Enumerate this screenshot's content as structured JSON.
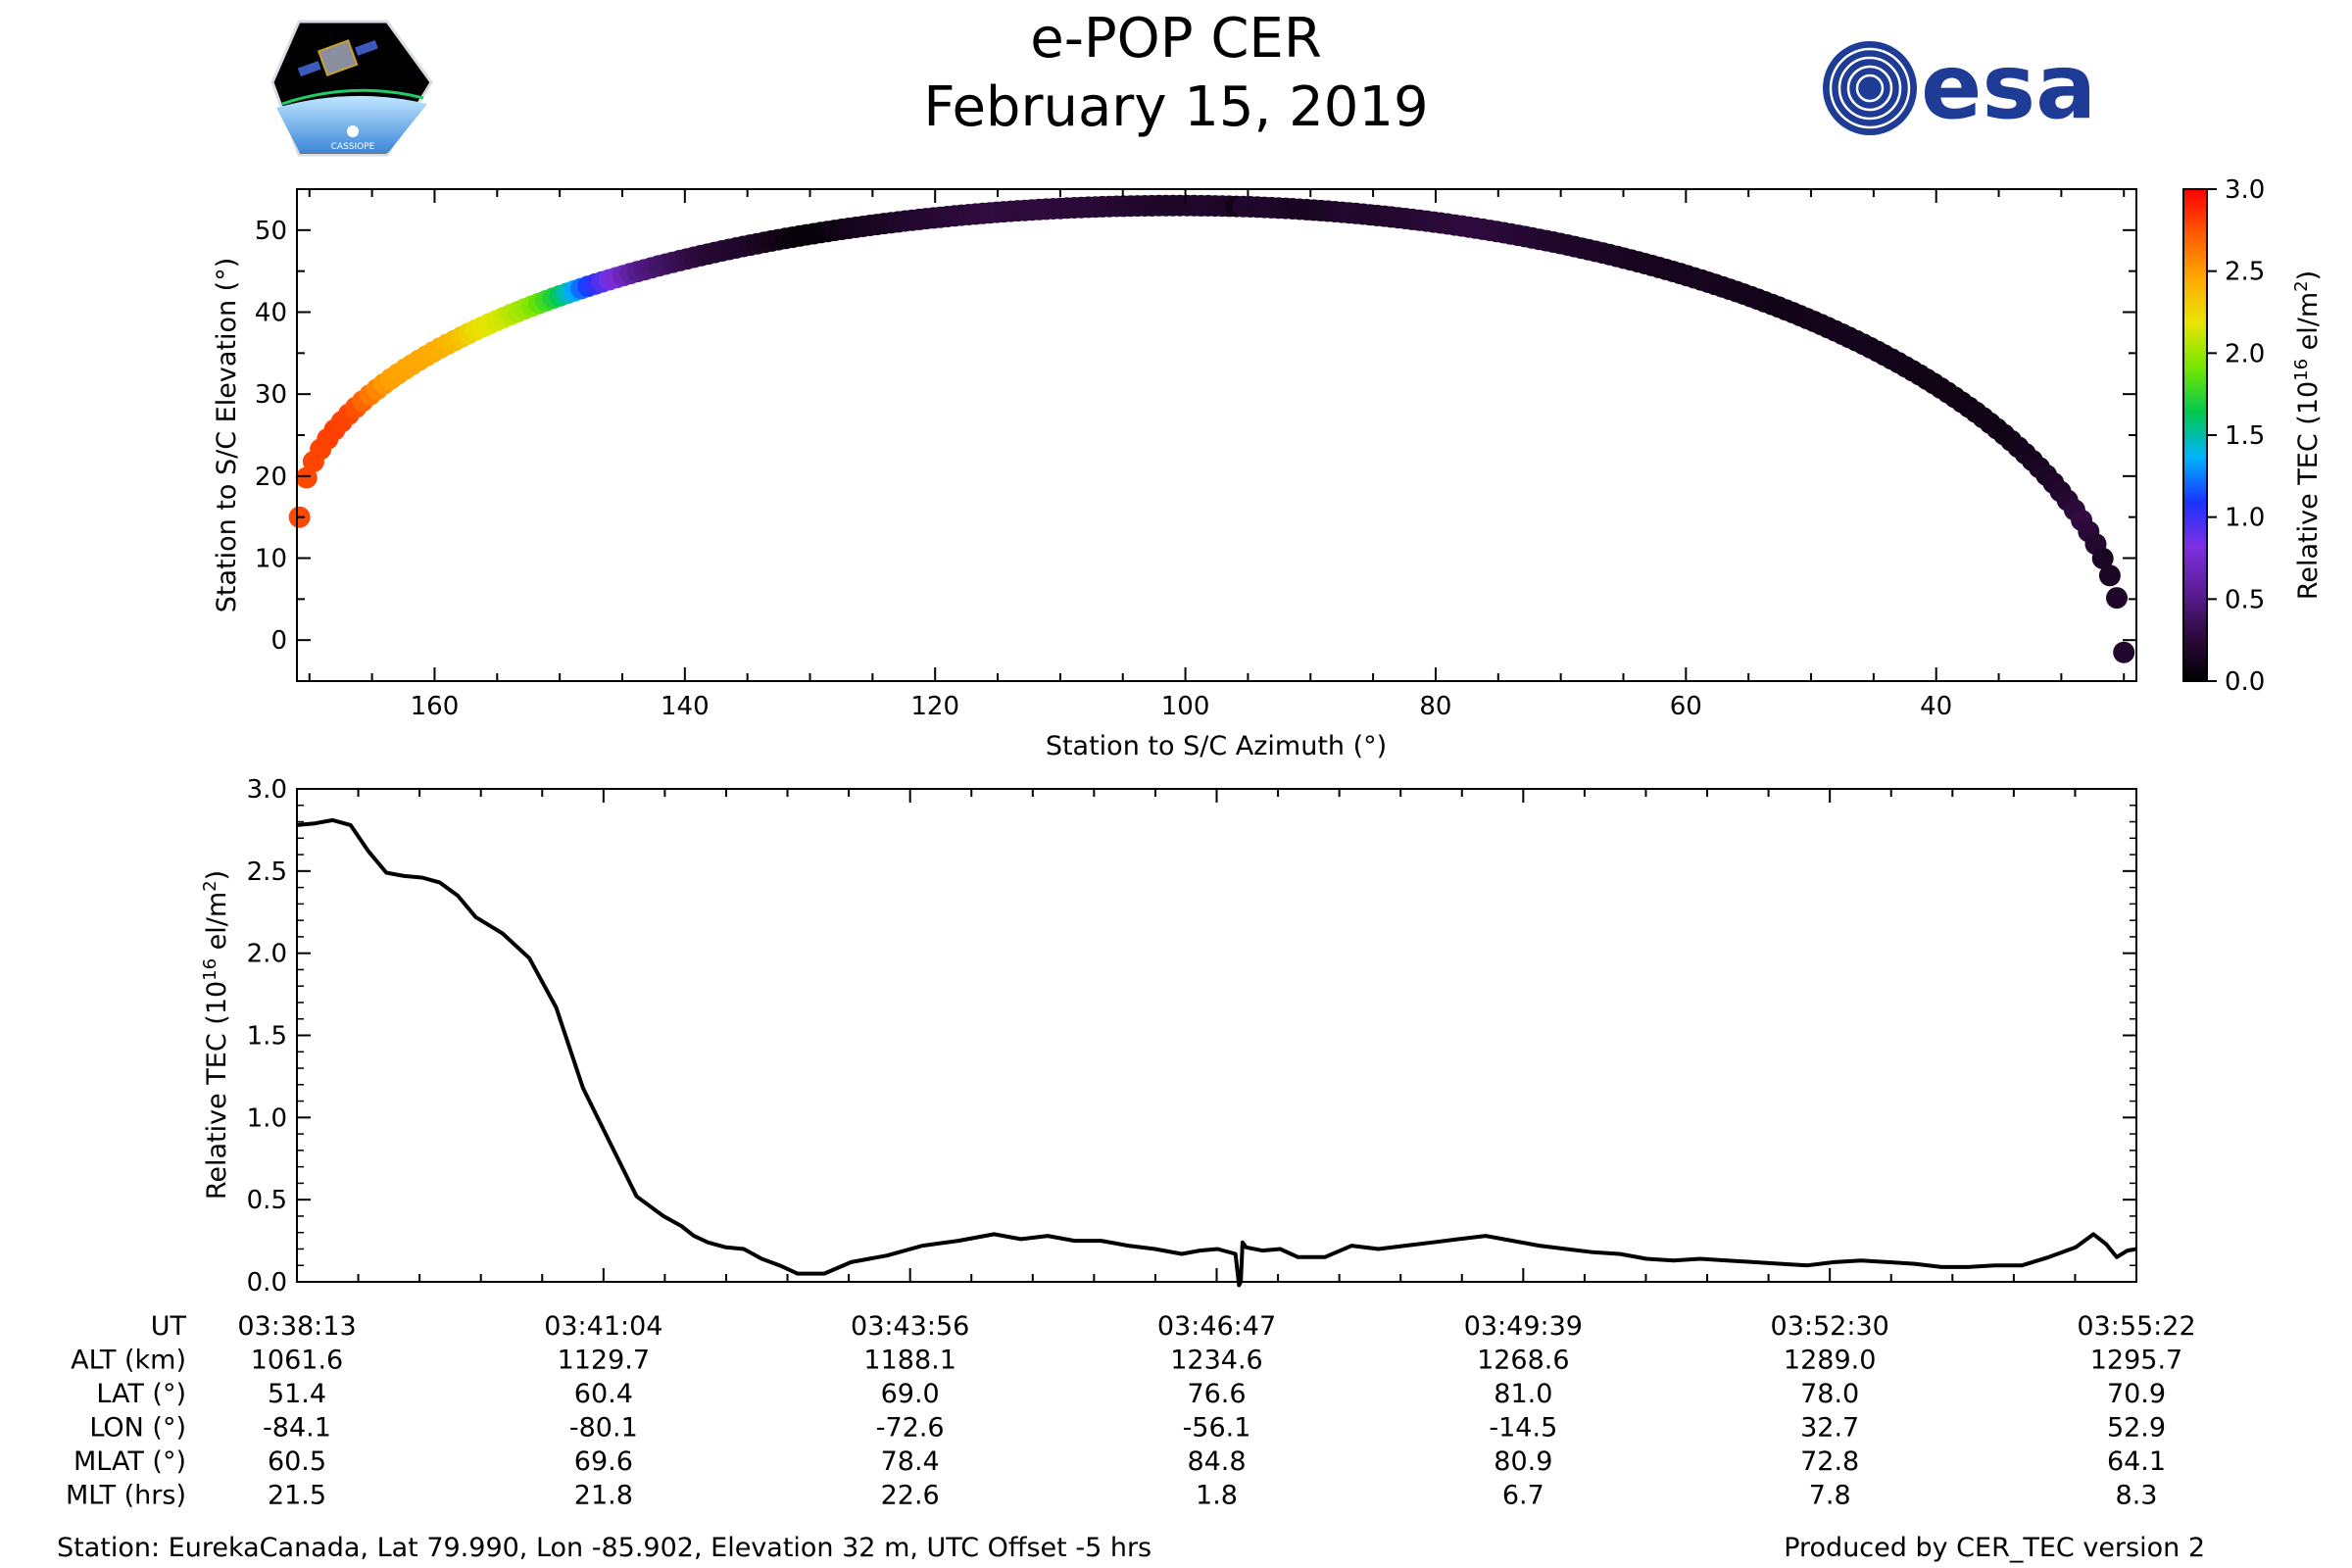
{
  "header": {
    "title": "e-POP CER",
    "subtitle": "February 15, 2019",
    "logo_left_text": "CASSIOPE",
    "logo_right_text": "esa"
  },
  "chart_data": [
    {
      "type": "scatter",
      "name": "track",
      "xlabel": "Station to S/C Azimuth (°)",
      "ylabel": "Station to S/C Elevation (°)",
      "xlim": [
        171,
        24
      ],
      "ylim": [
        -5,
        55
      ],
      "xticks": [
        160,
        140,
        120,
        100,
        80,
        60,
        40
      ],
      "yticks": [
        0,
        10,
        20,
        30,
        40,
        50
      ],
      "colorbar": {
        "label": "Relative TEC (10",
        "label_sup": "16",
        "label_unit": " el/m",
        "label_unit_sup": "2",
        "label_end": ")",
        "range": [
          0,
          3
        ],
        "ticks": [
          "0.0",
          "0.5",
          "1.0",
          "1.5",
          "2.0",
          "2.5",
          "3.0"
        ],
        "colormap": [
          "#000000",
          "#2d0a3c",
          "#5a1e96",
          "#7f2fe0",
          "#1a33ff",
          "#00b3ff",
          "#00c850",
          "#73e600",
          "#e6e600",
          "#ffaa00",
          "#ff5a00",
          "#ff0000"
        ]
      }
    },
    {
      "type": "line",
      "name": "tec",
      "ylabel": "Relative TEC (10",
      "ylabel_sup": "16",
      "ylabel_unit": " el/m",
      "ylabel_unit_sup": "2",
      "ylabel_end": ")",
      "xlim": [
        0,
        1029
      ],
      "ylim": [
        0,
        3
      ],
      "yticks": [
        "0.0",
        "0.5",
        "1.0",
        "1.5",
        "2.0",
        "2.5",
        "3.0"
      ],
      "x": [
        0,
        10,
        20,
        30,
        40,
        50,
        60,
        70,
        80,
        90,
        100,
        115,
        130,
        145,
        160,
        175,
        190,
        205,
        215,
        222,
        230,
        240,
        250,
        260,
        270,
        280,
        295,
        310,
        330,
        350,
        370,
        390,
        405,
        420,
        435,
        450,
        465,
        480,
        495,
        505,
        515,
        525,
        527,
        528,
        529,
        531,
        540,
        550,
        560,
        575,
        590,
        605,
        620,
        635,
        650,
        665,
        680,
        695,
        710,
        725,
        740,
        755,
        770,
        785,
        800,
        815,
        830,
        845,
        860,
        875,
        890,
        905,
        920,
        935,
        950,
        965,
        980,
        995,
        1005,
        1012,
        1018,
        1024,
        1029
      ],
      "values": [
        2.78,
        2.79,
        2.81,
        2.78,
        2.62,
        2.49,
        2.47,
        2.46,
        2.43,
        2.35,
        2.22,
        2.12,
        1.97,
        1.67,
        1.18,
        0.85,
        0.52,
        0.4,
        0.34,
        0.28,
        0.24,
        0.21,
        0.2,
        0.14,
        0.1,
        0.05,
        0.05,
        0.12,
        0.16,
        0.22,
        0.25,
        0.29,
        0.26,
        0.28,
        0.25,
        0.25,
        0.22,
        0.2,
        0.17,
        0.19,
        0.2,
        0.17,
        -0.02,
        0.0,
        0.24,
        0.21,
        0.19,
        0.2,
        0.15,
        0.15,
        0.22,
        0.2,
        0.22,
        0.24,
        0.26,
        0.28,
        0.25,
        0.22,
        0.2,
        0.18,
        0.17,
        0.14,
        0.13,
        0.14,
        0.13,
        0.12,
        0.11,
        0.1,
        0.12,
        0.13,
        0.12,
        0.11,
        0.09,
        0.09,
        0.1,
        0.1,
        0.15,
        0.21,
        0.29,
        0.23,
        0.15,
        0.19,
        0.2
      ]
    }
  ],
  "ephemeris": {
    "row_labels": [
      "UT",
      "ALT (km)",
      "LAT (°)",
      "LON (°)",
      "MLAT (°)",
      "MLT (hrs)"
    ],
    "columns": [
      {
        "values": [
          "03:38:13",
          "1061.6",
          "51.4",
          "-84.1",
          "60.5",
          "21.5"
        ]
      },
      {
        "values": [
          "03:41:04",
          "1129.7",
          "60.4",
          "-80.1",
          "69.6",
          "21.8"
        ]
      },
      {
        "values": [
          "03:43:56",
          "1188.1",
          "69.0",
          "-72.6",
          "78.4",
          "22.6"
        ]
      },
      {
        "values": [
          "03:46:47",
          "1234.6",
          "76.6",
          "-56.1",
          "84.8",
          "1.8"
        ]
      },
      {
        "values": [
          "03:49:39",
          "1268.6",
          "81.0",
          "-14.5",
          "80.9",
          "6.7"
        ]
      },
      {
        "values": [
          "03:52:30",
          "1289.0",
          "78.0",
          "32.7",
          "72.8",
          "7.8"
        ]
      },
      {
        "values": [
          "03:55:22",
          "1295.7",
          "70.9",
          "52.9",
          "64.1",
          "8.3"
        ]
      }
    ]
  },
  "footer": {
    "station": "Station: EurekaCanada, Lat 79.990, Lon -85.902, Elevation 32 m, UTC Offset -5 hrs",
    "producer": "Produced by CER_TEC version 2"
  }
}
